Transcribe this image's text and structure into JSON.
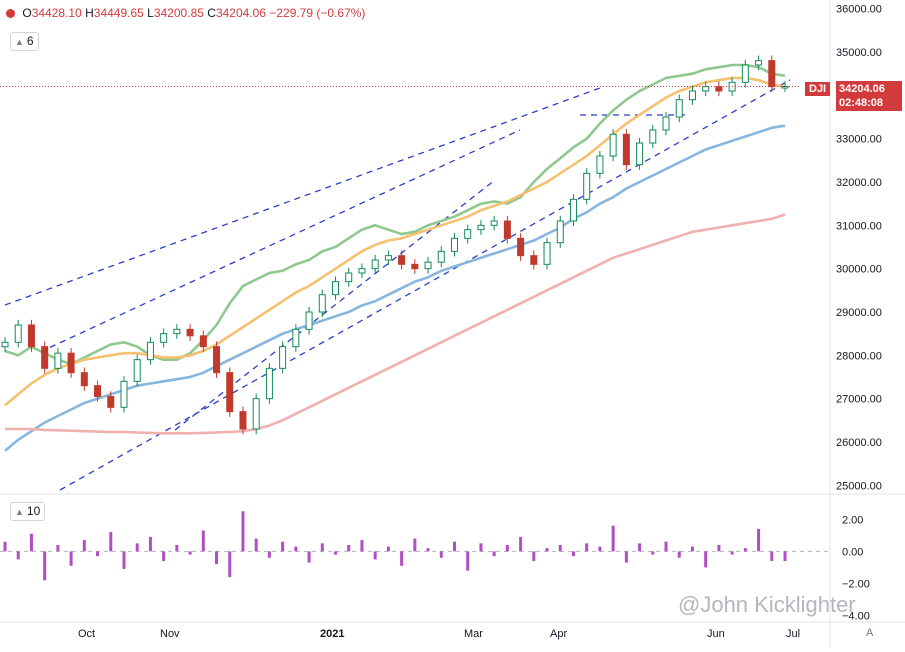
{
  "legend": {
    "open_label": "O",
    "open": "34428.10",
    "high_label": "H",
    "high": "34449.65",
    "low_label": "L",
    "low": "34200.85",
    "close_label": "C",
    "close": "34204.06",
    "change": "−229.79 (−0.67%)",
    "color": "#d23b3b"
  },
  "main_chip": "6",
  "osc_chip": "10",
  "ticker": "DJI",
  "price_tag": "34204.06",
  "time_tag": "02:48:08",
  "watermark": "@John Kicklighter",
  "auto_label": "A",
  "chart_data": [
    {
      "type": "line",
      "title": "",
      "xlabel": "",
      "ylabel": "",
      "x_ticks": [
        "Oct",
        "Nov",
        "2021",
        "Mar",
        "Apr",
        "Jun",
        "Jul"
      ],
      "y_ticks": [
        "25000.00",
        "26000.00",
        "27000.00",
        "28000.00",
        "29000.00",
        "30000.00",
        "31000.00",
        "32000.00",
        "33000.00",
        "34000.00",
        "35000.00",
        "36000.00"
      ],
      "ylim": [
        24800,
        36200
      ],
      "grid": false,
      "last_price": 34204.06,
      "series": [
        {
          "name": "",
          "color": "#8fc88f",
          "kind": "ma",
          "values": [
            28100,
            28000,
            28200,
            28050,
            27900,
            27800,
            27950,
            28100,
            28250,
            28300,
            28200,
            28000,
            27900,
            27900,
            28050,
            28350,
            28700,
            29200,
            29600,
            29750,
            29900,
            29950,
            30100,
            30200,
            30400,
            30500,
            30700,
            30900,
            31000,
            30900,
            30800,
            30850,
            31000,
            31100,
            31200,
            31350,
            31500,
            31550,
            31500,
            31650,
            32000,
            32300,
            32550,
            32800,
            33000,
            33350,
            33650,
            33900,
            34100,
            34250,
            34400,
            34450,
            34500,
            34600,
            34650,
            34700,
            34700,
            34650,
            34500,
            34450
          ]
        },
        {
          "name": "",
          "color": "#f5c06f",
          "kind": "ma",
          "values": [
            26850,
            27100,
            27350,
            27550,
            27700,
            27800,
            27900,
            27950,
            28000,
            28050,
            28050,
            28000,
            27950,
            27950,
            28000,
            28100,
            28250,
            28450,
            28650,
            28850,
            29050,
            29250,
            29450,
            29600,
            29800,
            30000,
            30200,
            30400,
            30550,
            30650,
            30700,
            30800,
            30900,
            31000,
            31100,
            31200,
            31350,
            31450,
            31550,
            31700,
            31850,
            32000,
            32200,
            32400,
            32600,
            32850,
            33100,
            33350,
            33550,
            33750,
            33950,
            34100,
            34200,
            34300,
            34350,
            34400,
            34400,
            34350,
            34250,
            34200
          ]
        },
        {
          "name": "",
          "color": "#86b6e0",
          "kind": "ma",
          "values": [
            25800,
            26050,
            26250,
            26450,
            26600,
            26750,
            26900,
            27000,
            27100,
            27200,
            27300,
            27350,
            27400,
            27450,
            27500,
            27600,
            27750,
            27900,
            28050,
            28200,
            28350,
            28500,
            28600,
            28700,
            28800,
            28900,
            29000,
            29150,
            29250,
            29400,
            29550,
            29700,
            29800,
            29950,
            30050,
            30150,
            30250,
            30350,
            30450,
            30550,
            30650,
            30800,
            30950,
            31150,
            31300,
            31500,
            31650,
            31850,
            32000,
            32150,
            32300,
            32450,
            32600,
            32750,
            32850,
            32950,
            33050,
            33150,
            33250,
            33300
          ]
        },
        {
          "name": "",
          "color": "#efb0b0",
          "kind": "ma",
          "values": [
            26300,
            26300,
            26300,
            26280,
            26270,
            26260,
            26250,
            26240,
            26230,
            26230,
            26220,
            26210,
            26200,
            26200,
            26200,
            26210,
            26220,
            26230,
            26250,
            26300,
            26380,
            26500,
            26650,
            26800,
            26950,
            27100,
            27250,
            27400,
            27550,
            27700,
            27850,
            28000,
            28150,
            28300,
            28450,
            28600,
            28750,
            28900,
            29050,
            29200,
            29350,
            29500,
            29650,
            29800,
            29950,
            30100,
            30250,
            30350,
            30450,
            30550,
            30650,
            30750,
            30850,
            30900,
            30950,
            31000,
            31050,
            31100,
            31150,
            31250
          ]
        }
      ],
      "candles_close": [
        28300,
        28700,
        28200,
        27700,
        28050,
        27600,
        27300,
        27050,
        26800,
        27400,
        27900,
        28300,
        28500,
        28600,
        28450,
        28200,
        27600,
        26700,
        26300,
        27000,
        27700,
        28200,
        28600,
        29000,
        29400,
        29700,
        29900,
        30000,
        30200,
        30300,
        30100,
        30000,
        30150,
        30400,
        30700,
        30900,
        31000,
        31100,
        30700,
        30300,
        30100,
        30600,
        31100,
        31600,
        32200,
        32600,
        33100,
        32400,
        32900,
        33200,
        33500,
        33900,
        34100,
        34200,
        34100,
        34300,
        34700,
        34800,
        34200,
        34204
      ]
    },
    {
      "type": "bar",
      "title": "",
      "y_ticks": [
        "2.00",
        "0.00",
        "−2.00",
        "−4.00"
      ],
      "ylim": [
        -4.4,
        3.2
      ],
      "values": [
        0.6,
        -0.5,
        1.1,
        -1.8,
        0.4,
        -0.9,
        0.7,
        -0.3,
        1.2,
        -1.1,
        0.5,
        0.9,
        -0.6,
        0.4,
        -0.2,
        1.3,
        -0.8,
        -1.6,
        2.5,
        0.8,
        -0.4,
        0.6,
        0.3,
        -0.7,
        0.5,
        -0.2,
        0.4,
        0.7,
        -0.5,
        0.3,
        -0.9,
        0.8,
        0.2,
        -0.4,
        0.6,
        -1.2,
        0.5,
        -0.3,
        0.4,
        0.9,
        -0.6,
        0.2,
        0.4,
        -0.3,
        0.5,
        0.3,
        1.6,
        -0.7,
        0.5,
        -0.2,
        0.6,
        -0.4,
        0.3,
        -1.0,
        0.4,
        -0.2,
        0.2,
        1.4,
        -0.6,
        -0.6
      ]
    }
  ]
}
